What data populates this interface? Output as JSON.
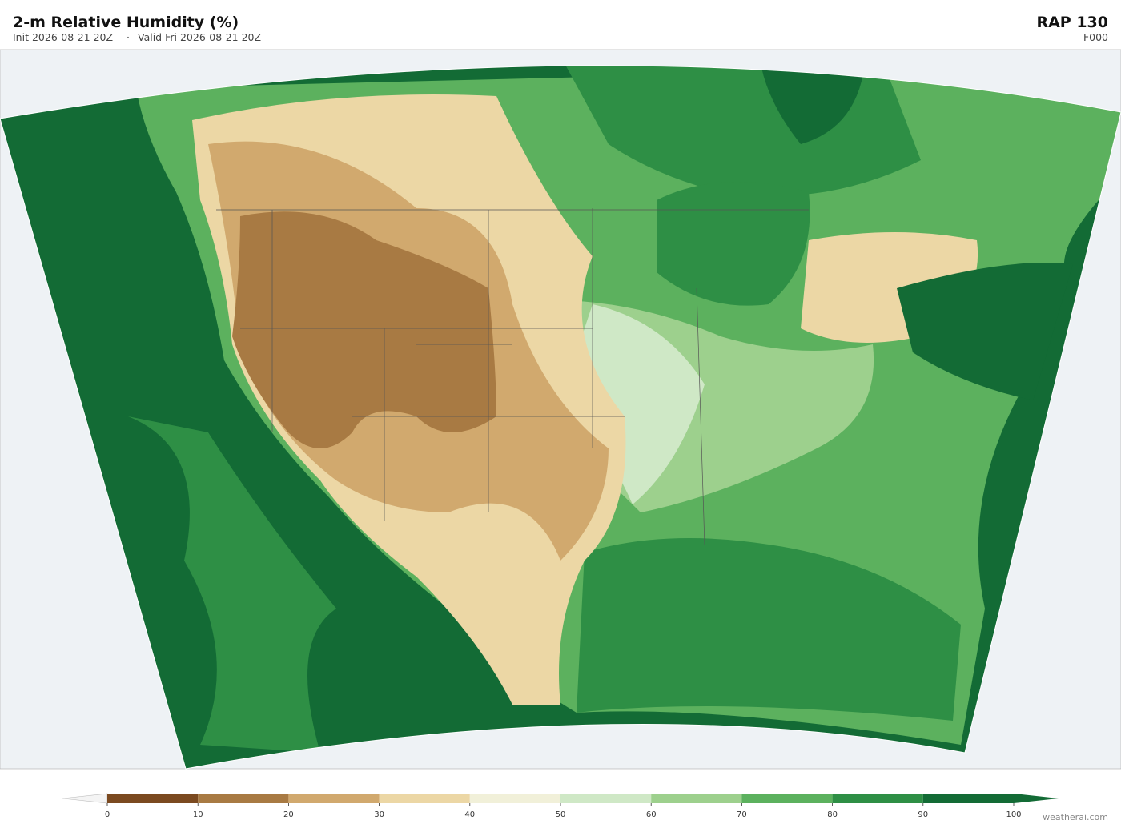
{
  "header": {
    "title": "2-m Relative Humidity  (%)",
    "init": "Init 2026-08-21 20Z",
    "separator": "·",
    "valid": "Valid Fri 2026-08-21 20Z",
    "model": "RAP  130",
    "forecast_hour": "F000"
  },
  "colorbar": {
    "ticks": [
      0,
      10,
      20,
      30,
      40,
      50,
      60,
      70,
      80,
      90,
      100
    ],
    "colors": [
      "#7b4a20",
      "#a87a43",
      "#d1a96e",
      "#ecd7a5",
      "#f1f0d9",
      "#cfe8c6",
      "#9dd08d",
      "#5cb15e",
      "#2e8f45",
      "#136b35"
    ],
    "under_color": "#f4f4f4",
    "over_color": "#136b35"
  },
  "footer": {
    "credit": "weatherai.com"
  }
}
